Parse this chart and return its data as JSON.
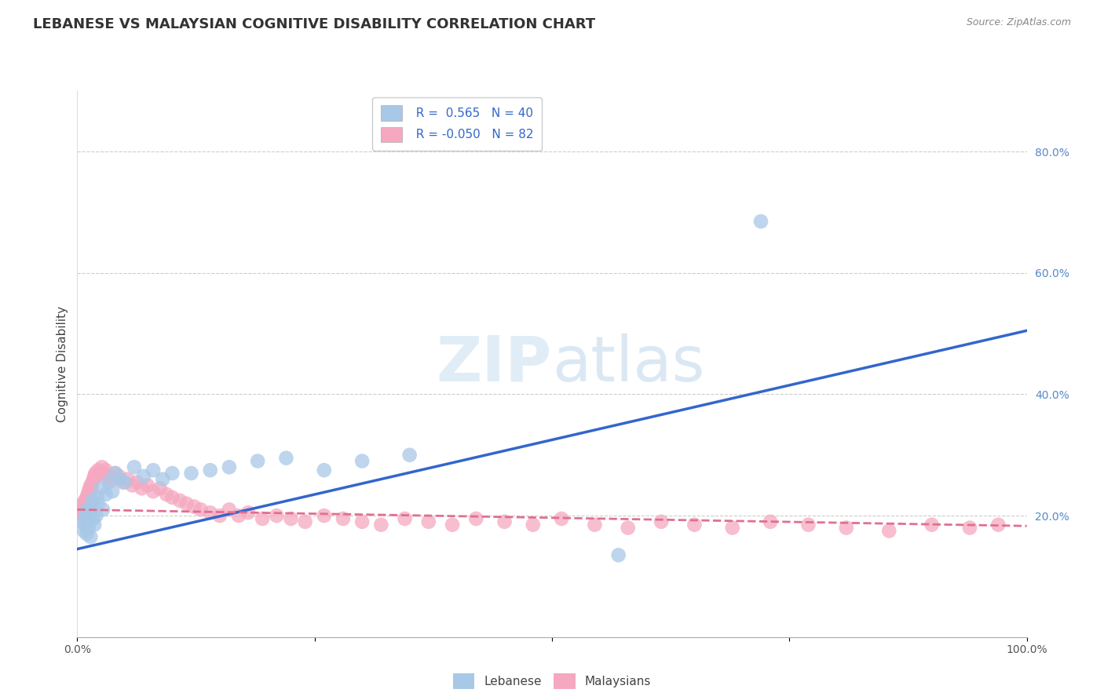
{
  "title": "LEBANESE VS MALAYSIAN COGNITIVE DISABILITY CORRELATION CHART",
  "source": "Source: ZipAtlas.com",
  "ylabel": "Cognitive Disability",
  "xlim": [
    0.0,
    1.0
  ],
  "ylim": [
    0.0,
    0.9
  ],
  "x_tick_pos": [
    0.0,
    0.25,
    0.5,
    0.75,
    1.0
  ],
  "x_tick_labels": [
    "0.0%",
    "",
    "",
    "",
    "100.0%"
  ],
  "y_tick_positions_right": [
    0.2,
    0.4,
    0.6,
    0.8
  ],
  "y_tick_labels_right": [
    "20.0%",
    "40.0%",
    "60.0%",
    "80.0%"
  ],
  "lebanese_color": "#a8c8e8",
  "malaysians_color": "#f5a8c0",
  "lebanese_line_color": "#3366cc",
  "malaysians_line_color": "#e07090",
  "R_lebanese": 0.565,
  "N_lebanese": 40,
  "R_malaysians": -0.05,
  "N_malaysians": 82,
  "title_fontsize": 13,
  "axis_label_fontsize": 11,
  "tick_fontsize": 10,
  "legend_fontsize": 11,
  "watermark": "ZIPatlas",
  "background_color": "#ffffff",
  "grid_color": "#cccccc",
  "leb_line_x0": 0.0,
  "leb_line_y0": 0.145,
  "leb_line_x1": 1.0,
  "leb_line_y1": 0.505,
  "mal_line_x0": 0.0,
  "mal_line_y0": 0.21,
  "mal_line_x1": 1.0,
  "mal_line_y1": 0.183,
  "lebanese_x": [
    0.005,
    0.007,
    0.008,
    0.009,
    0.01,
    0.01,
    0.011,
    0.012,
    0.013,
    0.014,
    0.015,
    0.016,
    0.017,
    0.018,
    0.02,
    0.021,
    0.022,
    0.025,
    0.027,
    0.03,
    0.033,
    0.037,
    0.04,
    0.045,
    0.05,
    0.06,
    0.07,
    0.08,
    0.09,
    0.1,
    0.12,
    0.14,
    0.16,
    0.19,
    0.22,
    0.26,
    0.3,
    0.35,
    0.57,
    0.72
  ],
  "lebanese_y": [
    0.19,
    0.175,
    0.185,
    0.2,
    0.17,
    0.21,
    0.195,
    0.18,
    0.205,
    0.165,
    0.215,
    0.225,
    0.195,
    0.185,
    0.2,
    0.23,
    0.22,
    0.245,
    0.21,
    0.235,
    0.255,
    0.24,
    0.27,
    0.26,
    0.255,
    0.28,
    0.265,
    0.275,
    0.26,
    0.27,
    0.27,
    0.275,
    0.28,
    0.29,
    0.295,
    0.275,
    0.29,
    0.3,
    0.135,
    0.685
  ],
  "malaysians_x": [
    0.003,
    0.004,
    0.005,
    0.005,
    0.006,
    0.006,
    0.007,
    0.007,
    0.008,
    0.008,
    0.009,
    0.009,
    0.01,
    0.01,
    0.011,
    0.011,
    0.012,
    0.012,
    0.013,
    0.013,
    0.014,
    0.015,
    0.016,
    0.017,
    0.018,
    0.019,
    0.02,
    0.022,
    0.024,
    0.026,
    0.028,
    0.03,
    0.033,
    0.036,
    0.04,
    0.044,
    0.048,
    0.053,
    0.058,
    0.063,
    0.068,
    0.074,
    0.08,
    0.087,
    0.094,
    0.1,
    0.108,
    0.115,
    0.123,
    0.13,
    0.14,
    0.15,
    0.16,
    0.17,
    0.18,
    0.195,
    0.21,
    0.225,
    0.24,
    0.26,
    0.28,
    0.3,
    0.32,
    0.345,
    0.37,
    0.395,
    0.42,
    0.45,
    0.48,
    0.51,
    0.545,
    0.58,
    0.615,
    0.65,
    0.69,
    0.73,
    0.77,
    0.81,
    0.855,
    0.9,
    0.94,
    0.97
  ],
  "malaysians_y": [
    0.21,
    0.205,
    0.215,
    0.2,
    0.22,
    0.21,
    0.215,
    0.205,
    0.225,
    0.21,
    0.22,
    0.215,
    0.23,
    0.225,
    0.235,
    0.22,
    0.24,
    0.23,
    0.245,
    0.235,
    0.25,
    0.245,
    0.255,
    0.26,
    0.265,
    0.27,
    0.265,
    0.275,
    0.27,
    0.28,
    0.27,
    0.275,
    0.265,
    0.26,
    0.27,
    0.265,
    0.255,
    0.26,
    0.25,
    0.255,
    0.245,
    0.25,
    0.24,
    0.245,
    0.235,
    0.23,
    0.225,
    0.22,
    0.215,
    0.21,
    0.205,
    0.2,
    0.21,
    0.2,
    0.205,
    0.195,
    0.2,
    0.195,
    0.19,
    0.2,
    0.195,
    0.19,
    0.185,
    0.195,
    0.19,
    0.185,
    0.195,
    0.19,
    0.185,
    0.195,
    0.185,
    0.18,
    0.19,
    0.185,
    0.18,
    0.19,
    0.185,
    0.18,
    0.175,
    0.185,
    0.18,
    0.185
  ]
}
